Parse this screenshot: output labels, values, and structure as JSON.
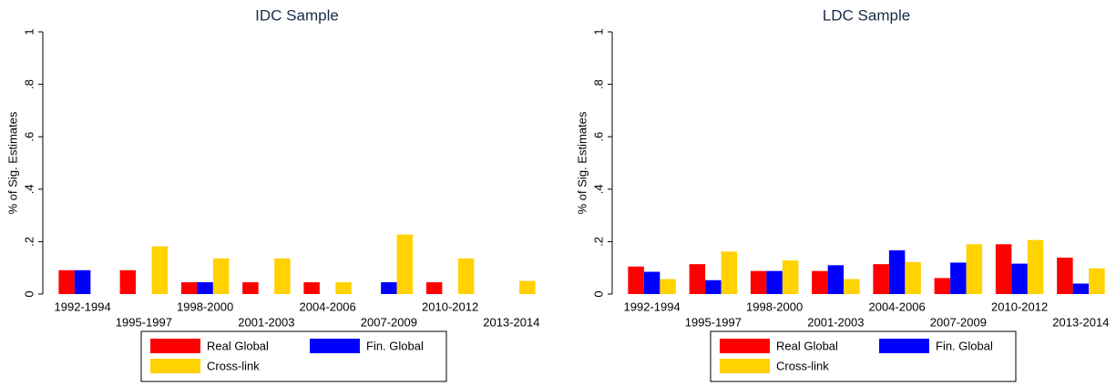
{
  "chart_data": [
    {
      "type": "bar",
      "title": "IDC Sample",
      "y_label": "% of Sig. Estimates",
      "categories": [
        "1992-1994",
        "1995-1997",
        "1998-2000",
        "2001-2003",
        "2004-2006",
        "2007-2009",
        "2010-2012",
        "2013-2014"
      ],
      "series": [
        {
          "name": "Real Global",
          "color": "#ff0000",
          "values": [
            0.091,
            0.091,
            0.045,
            0.045,
            0.045,
            0,
            0.045,
            0
          ]
        },
        {
          "name": "Fin. Global",
          "color": "#0000ff",
          "values": [
            0.091,
            0,
            0.045,
            0,
            0,
            0.045,
            0,
            0
          ]
        },
        {
          "name": "Cross-link",
          "color": "#ffd200",
          "values": [
            0,
            0.182,
            0.136,
            0.136,
            0.045,
            0.227,
            0.136,
            0.05
          ]
        }
      ],
      "ylim": [
        0,
        1
      ],
      "yticks": [
        0,
        {
          "value": 0.2,
          "label": ".2"
        },
        {
          "value": 0.4,
          "label": ".4"
        },
        {
          "value": 0.6,
          "label": ".6"
        },
        {
          "value": 0.8,
          "label": ".8"
        },
        1
      ],
      "grid": false,
      "legend": "bottom"
    },
    {
      "type": "bar",
      "title": "LDC Sample",
      "y_label": "% of Sig. Estimates",
      "categories": [
        "1992-1994",
        "1995-1997",
        "1998-2000",
        "2001-2003",
        "2004-2006",
        "2007-2009",
        "2010-2012",
        "2013-2014"
      ],
      "series": [
        {
          "name": "Real Global",
          "color": "#ff0000",
          "values": [
            0.105,
            0.114,
            0.088,
            0.088,
            0.114,
            0.061,
            0.19,
            0.139
          ]
        },
        {
          "name": "Fin. Global",
          "color": "#0000ff",
          "values": [
            0.085,
            0.053,
            0.088,
            0.11,
            0.167,
            0.12,
            0.116,
            0.04
          ]
        },
        {
          "name": "Cross-link",
          "color": "#ffd200",
          "values": [
            0.057,
            0.162,
            0.128,
            0.057,
            0.122,
            0.19,
            0.206,
            0.098
          ]
        }
      ],
      "ylim": [
        0,
        1
      ],
      "yticks": [
        0,
        {
          "value": 0.2,
          "label": ".2"
        },
        {
          "value": 0.4,
          "label": ".4"
        },
        {
          "value": 0.6,
          "label": ".6"
        },
        {
          "value": 0.8,
          "label": ".8"
        },
        1
      ],
      "grid": false,
      "legend": "bottom"
    }
  ]
}
